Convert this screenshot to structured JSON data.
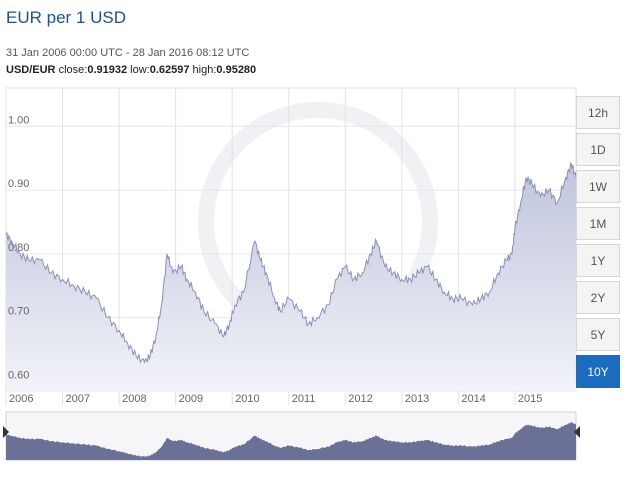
{
  "header": {
    "title": "EUR per 1 USD",
    "range": "31 Jan 2006 00:00 UTC - 28 Jan 2016 08:12 UTC",
    "pair": "USD/EUR",
    "close_label": "close:",
    "close": "0.91932",
    "low_label": "low:",
    "low": "0.62597",
    "high_label": "high:",
    "high": "0.95280"
  },
  "range_buttons": [
    {
      "label": "12h",
      "active": false
    },
    {
      "label": "1D",
      "active": false
    },
    {
      "label": "1W",
      "active": false
    },
    {
      "label": "1M",
      "active": false
    },
    {
      "label": "1Y",
      "active": false
    },
    {
      "label": "2Y",
      "active": false
    },
    {
      "label": "5Y",
      "active": false
    },
    {
      "label": "10Y",
      "active": true
    }
  ],
  "colors": {
    "line": "#8a91b5",
    "fill_top": "#bfc4dd",
    "fill_bottom": "#f2f3f8",
    "navigator": "#6b7196",
    "active_button": "#1b6bbf"
  },
  "chart_data": {
    "type": "area",
    "title": "EUR per 1 USD",
    "xlabel": "",
    "ylabel": "",
    "xlim": [
      2006.0,
      2016.08
    ],
    "ylim": [
      0.585,
      1.06
    ],
    "y_ticks": [
      {
        "value": 0.6,
        "label": "0.60"
      },
      {
        "value": 0.7,
        "label": "0.70"
      },
      {
        "value": 0.8,
        "label": "0.80"
      },
      {
        "value": 0.9,
        "label": "0.90"
      },
      {
        "value": 1.0,
        "label": "1.00"
      }
    ],
    "x_ticks": [
      {
        "value": 2006,
        "label": "2006"
      },
      {
        "value": 2007,
        "label": "2007"
      },
      {
        "value": 2008,
        "label": "2008"
      },
      {
        "value": 2009,
        "label": "2009"
      },
      {
        "value": 2010,
        "label": "2010"
      },
      {
        "value": 2011,
        "label": "2011"
      },
      {
        "value": 2012,
        "label": "2012"
      },
      {
        "value": 2013,
        "label": "2013"
      },
      {
        "value": 2014,
        "label": "2014"
      },
      {
        "value": 2015,
        "label": "2015"
      }
    ],
    "grid": true,
    "series": [
      {
        "x": [
          2006.0,
          2006.1,
          2006.25,
          2006.4,
          2006.6,
          2006.8,
          2007.0,
          2007.2,
          2007.4,
          2007.6,
          2007.8,
          2008.0,
          2008.15,
          2008.3,
          2008.45,
          2008.55,
          2008.65,
          2008.75,
          2008.85,
          2008.95,
          2009.1,
          2009.2,
          2009.35,
          2009.5,
          2009.7,
          2009.85,
          2009.95,
          2010.05,
          2010.2,
          2010.4,
          2010.5,
          2010.6,
          2010.75,
          2010.85,
          2011.0,
          2011.2,
          2011.35,
          2011.5,
          2011.7,
          2011.85,
          2012.0,
          2012.15,
          2012.3,
          2012.45,
          2012.55,
          2012.7,
          2012.85,
          2013.0,
          2013.15,
          2013.3,
          2013.45,
          2013.6,
          2013.75,
          2013.9,
          2014.05,
          2014.25,
          2014.4,
          2014.55,
          2014.7,
          2014.85,
          2014.95,
          2015.0,
          2015.1,
          2015.2,
          2015.3,
          2015.45,
          2015.6,
          2015.75,
          2015.9,
          2016.0,
          2016.08
        ],
        "values": [
          0.83,
          0.82,
          0.8,
          0.79,
          0.79,
          0.77,
          0.76,
          0.75,
          0.74,
          0.73,
          0.7,
          0.68,
          0.66,
          0.64,
          0.63,
          0.64,
          0.67,
          0.72,
          0.8,
          0.77,
          0.78,
          0.76,
          0.74,
          0.71,
          0.69,
          0.67,
          0.69,
          0.72,
          0.74,
          0.82,
          0.79,
          0.77,
          0.73,
          0.71,
          0.73,
          0.71,
          0.69,
          0.7,
          0.72,
          0.76,
          0.78,
          0.76,
          0.77,
          0.8,
          0.82,
          0.78,
          0.77,
          0.76,
          0.76,
          0.77,
          0.78,
          0.76,
          0.74,
          0.73,
          0.73,
          0.72,
          0.73,
          0.74,
          0.77,
          0.79,
          0.8,
          0.84,
          0.88,
          0.92,
          0.91,
          0.89,
          0.9,
          0.88,
          0.92,
          0.94,
          0.92
        ]
      }
    ]
  }
}
